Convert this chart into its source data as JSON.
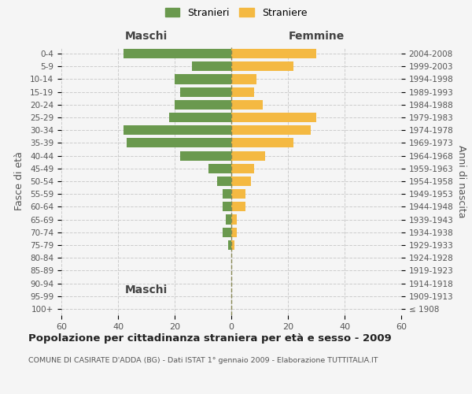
{
  "age_groups": [
    "100+",
    "95-99",
    "90-94",
    "85-89",
    "80-84",
    "75-79",
    "70-74",
    "65-69",
    "60-64",
    "55-59",
    "50-54",
    "45-49",
    "40-44",
    "35-39",
    "30-34",
    "25-29",
    "20-24",
    "15-19",
    "10-14",
    "5-9",
    "0-4"
  ],
  "birth_years": [
    "≤ 1908",
    "1909-1913",
    "1914-1918",
    "1919-1923",
    "1924-1928",
    "1929-1933",
    "1934-1938",
    "1939-1943",
    "1944-1948",
    "1949-1953",
    "1954-1958",
    "1959-1963",
    "1964-1968",
    "1969-1973",
    "1974-1978",
    "1979-1983",
    "1984-1988",
    "1989-1993",
    "1994-1998",
    "1999-2003",
    "2004-2008"
  ],
  "maschi": [
    0,
    0,
    0,
    0,
    0,
    1,
    3,
    2,
    3,
    3,
    5,
    8,
    18,
    37,
    38,
    22,
    20,
    18,
    20,
    14,
    38
  ],
  "femmine": [
    0,
    0,
    0,
    0,
    0,
    1,
    2,
    2,
    5,
    5,
    7,
    8,
    12,
    22,
    28,
    30,
    11,
    8,
    9,
    22,
    30
  ],
  "maschi_color": "#6a994e",
  "femmine_color": "#f4b942",
  "title": "Popolazione per cittadinanza straniera per età e sesso - 2009",
  "subtitle": "COMUNE DI CASIRATE D'ADDA (BG) - Dati ISTAT 1° gennaio 2009 - Elaborazione TUTTITALIA.IT",
  "ylabel_left": "Fasce di età",
  "ylabel_right": "Anni di nascita",
  "xlabel_maschi": "Maschi",
  "xlabel_femmine": "Femmine",
  "legend_maschi": "Stranieri",
  "legend_femmine": "Straniere",
  "xlim": 60,
  "background_color": "#f5f5f5",
  "grid_color": "#cccccc"
}
